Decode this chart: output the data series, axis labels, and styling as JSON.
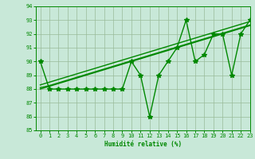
{
  "x": [
    0,
    1,
    2,
    3,
    4,
    5,
    6,
    7,
    8,
    9,
    10,
    11,
    12,
    13,
    14,
    15,
    16,
    17,
    18,
    19,
    20,
    21,
    22,
    23
  ],
  "y_main": [
    90,
    88,
    88,
    88,
    88,
    88,
    88,
    88,
    88,
    88,
    90,
    89,
    86,
    89,
    90,
    91,
    93,
    90,
    90.5,
    92,
    92,
    89,
    92,
    93
  ],
  "y_trend1": [
    88.0,
    88.2,
    88.4,
    88.6,
    88.8,
    89.0,
    89.2,
    89.4,
    89.6,
    89.8,
    90.0,
    90.2,
    90.4,
    90.6,
    90.8,
    91.0,
    91.2,
    91.4,
    91.6,
    91.8,
    92.0,
    92.2,
    92.4,
    92.6
  ],
  "y_trend2": [
    88.1,
    88.25,
    88.45,
    88.65,
    88.85,
    89.05,
    89.25,
    89.45,
    89.65,
    89.85,
    90.05,
    90.25,
    90.45,
    90.65,
    90.85,
    91.05,
    91.25,
    91.45,
    91.65,
    91.85,
    92.05,
    92.25,
    92.45,
    92.65
  ],
  "y_trend3": [
    88.3,
    88.5,
    88.7,
    88.9,
    89.1,
    89.3,
    89.5,
    89.7,
    89.9,
    90.1,
    90.3,
    90.5,
    90.7,
    90.9,
    91.1,
    91.3,
    91.5,
    91.7,
    91.9,
    92.1,
    92.3,
    92.5,
    92.7,
    92.9
  ],
  "xlabel": "Humidité relative (%)",
  "ylim": [
    85,
    94
  ],
  "xlim": [
    -0.5,
    23
  ],
  "yticks": [
    85,
    86,
    87,
    88,
    89,
    90,
    91,
    92,
    93,
    94
  ],
  "xticks": [
    0,
    1,
    2,
    3,
    4,
    5,
    6,
    7,
    8,
    9,
    10,
    11,
    12,
    13,
    14,
    15,
    16,
    17,
    18,
    19,
    20,
    21,
    22,
    23
  ],
  "line_color": "#008800",
  "bg_color": "#c8e8d8",
  "grid_color": "#99bb99",
  "marker": "*",
  "marker_size": 4,
  "line_width": 1.0,
  "tick_fontsize": 5.0,
  "xlabel_fontsize": 5.5
}
